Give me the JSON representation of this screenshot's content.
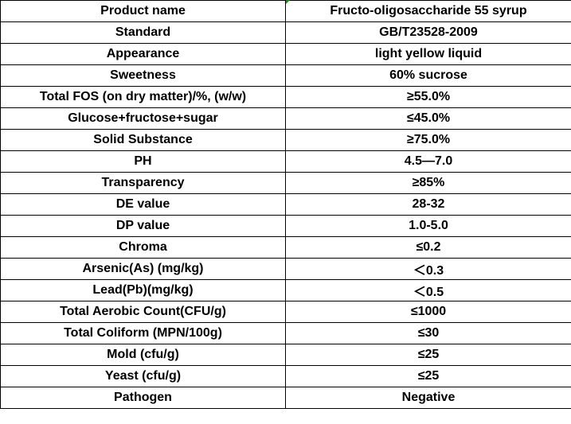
{
  "rows": [
    {
      "label": "Product name",
      "value": "Fructo-oligosaccharide 55 syrup"
    },
    {
      "label": "Standard",
      "value": "GB/T23528-2009"
    },
    {
      "label": "Appearance",
      "value": "light yellow liquid"
    },
    {
      "label": "Sweetness",
      "value": "60% sucrose"
    },
    {
      "label": "Total FOS (on dry matter)/%, (w/w)",
      "value": "≥55.0%"
    },
    {
      "label": "Glucose+fructose+sugar",
      "value": "≤45.0%"
    },
    {
      "label": "Solid Substance",
      "value": "≥75.0%"
    },
    {
      "label": "PH",
      "value": "4.5—7.0"
    },
    {
      "label": "Transparency",
      "value": "≥85%"
    },
    {
      "label": "DE value",
      "value": "28-32"
    },
    {
      "label": "DP value",
      "value": "1.0-5.0"
    },
    {
      "label": "Chroma",
      "value": "≤0.2"
    },
    {
      "label": "Arsenic(As) (mg/kg)",
      "value": "＜0.3"
    },
    {
      "label": "Lead(Pb)(mg/kg)",
      "value": "＜0.5"
    },
    {
      "label": "Total Aerobic Count(CFU/g)",
      "value": "≤1000"
    },
    {
      "label": "Total Coliform (MPN/100g)",
      "value": "≤30"
    },
    {
      "label": "Mold (cfu/g)",
      "value": "≤25"
    },
    {
      "label": "Yeast (cfu/g)",
      "value": "≤25"
    },
    {
      "label": "Pathogen",
      "value": "Negative"
    }
  ]
}
